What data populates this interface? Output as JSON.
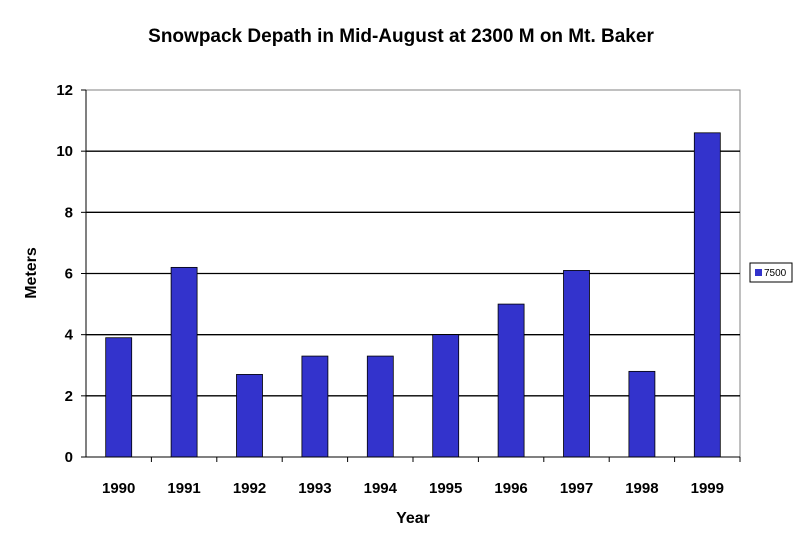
{
  "chart_data": {
    "type": "bar",
    "title": "Snowpack Depath in Mid-August at 2300 M on Mt. Baker",
    "xlabel": "Year",
    "ylabel": "Meters",
    "categories": [
      "1990",
      "1991",
      "1992",
      "1993",
      "1994",
      "1995",
      "1996",
      "1997",
      "1998",
      "1999"
    ],
    "series": [
      {
        "name": "7500",
        "values": [
          3.9,
          6.2,
          2.7,
          3.3,
          3.3,
          4.0,
          5.0,
          6.1,
          2.8,
          10.6
        ],
        "color": "#3333cc"
      }
    ],
    "ylim": [
      0,
      12
    ],
    "yticks": [
      0,
      2,
      4,
      6,
      8,
      10,
      12
    ],
    "grid": true,
    "legend_position": "right"
  }
}
